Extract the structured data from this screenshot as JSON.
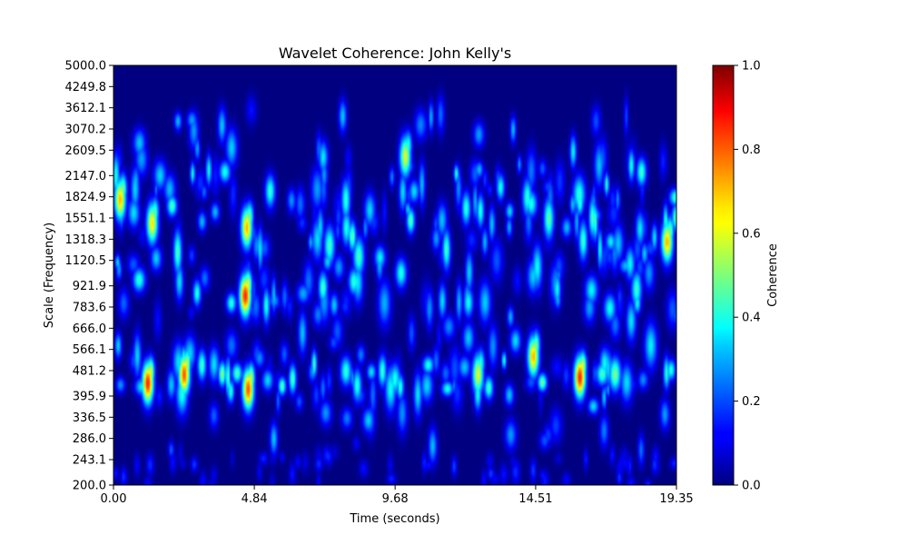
{
  "chart_data": {
    "type": "heatmap",
    "title": "Wavelet Coherence: John Kelly's",
    "xlabel": "Time (seconds)",
    "ylabel": "Scale (Frequency)",
    "xlim": [
      0,
      19.35
    ],
    "ylim": [
      200,
      5000
    ],
    "y_scale": "log",
    "x_ticks": [
      "0.00",
      "4.84",
      "9.68",
      "14.51",
      "19.35"
    ],
    "x_tick_values": [
      0.0,
      4.84,
      9.68,
      14.51,
      19.35
    ],
    "y_ticks": [
      "200.0",
      "243.1",
      "286.0",
      "336.5",
      "395.9",
      "481.2",
      "566.1",
      "666.0",
      "783.6",
      "921.9",
      "1120.5",
      "1318.3",
      "1551.1",
      "1824.9",
      "2147.0",
      "2609.5",
      "3070.2",
      "3612.1",
      "4249.8",
      "5000.0"
    ],
    "y_tick_values": [
      200.0,
      243.1,
      286.0,
      336.5,
      395.9,
      481.2,
      566.1,
      666.0,
      783.6,
      921.9,
      1120.5,
      1318.3,
      1551.1,
      1824.9,
      2147.0,
      2609.5,
      3070.2,
      3612.1,
      4249.8,
      5000.0
    ],
    "colorbar": {
      "label": "Coherence",
      "colormap": "jet",
      "range": [
        0,
        1
      ],
      "ticks": [
        "0.0",
        "0.2",
        "0.4",
        "0.6",
        "0.8",
        "1.0"
      ],
      "tick_values": [
        0.0,
        0.2,
        0.4,
        0.6,
        0.8,
        1.0
      ]
    },
    "hotspots": [
      {
        "time": 1.15,
        "scale": 440,
        "coherence": 0.85
      },
      {
        "time": 2.4,
        "scale": 470,
        "coherence": 0.8
      },
      {
        "time": 4.5,
        "scale": 860,
        "coherence": 0.85
      },
      {
        "time": 4.6,
        "scale": 420,
        "coherence": 0.8
      },
      {
        "time": 4.55,
        "scale": 1450,
        "coherence": 0.7
      },
      {
        "time": 1.3,
        "scale": 1500,
        "coherence": 0.65
      },
      {
        "time": 0.2,
        "scale": 1800,
        "coherence": 0.7
      },
      {
        "time": 16.0,
        "scale": 460,
        "coherence": 0.85
      },
      {
        "time": 14.4,
        "scale": 540,
        "coherence": 0.7
      },
      {
        "time": 10.0,
        "scale": 2500,
        "coherence": 0.6
      },
      {
        "time": 19.0,
        "scale": 1300,
        "coherence": 0.7
      },
      {
        "time": 12.5,
        "scale": 470,
        "coherence": 0.6
      }
    ]
  }
}
